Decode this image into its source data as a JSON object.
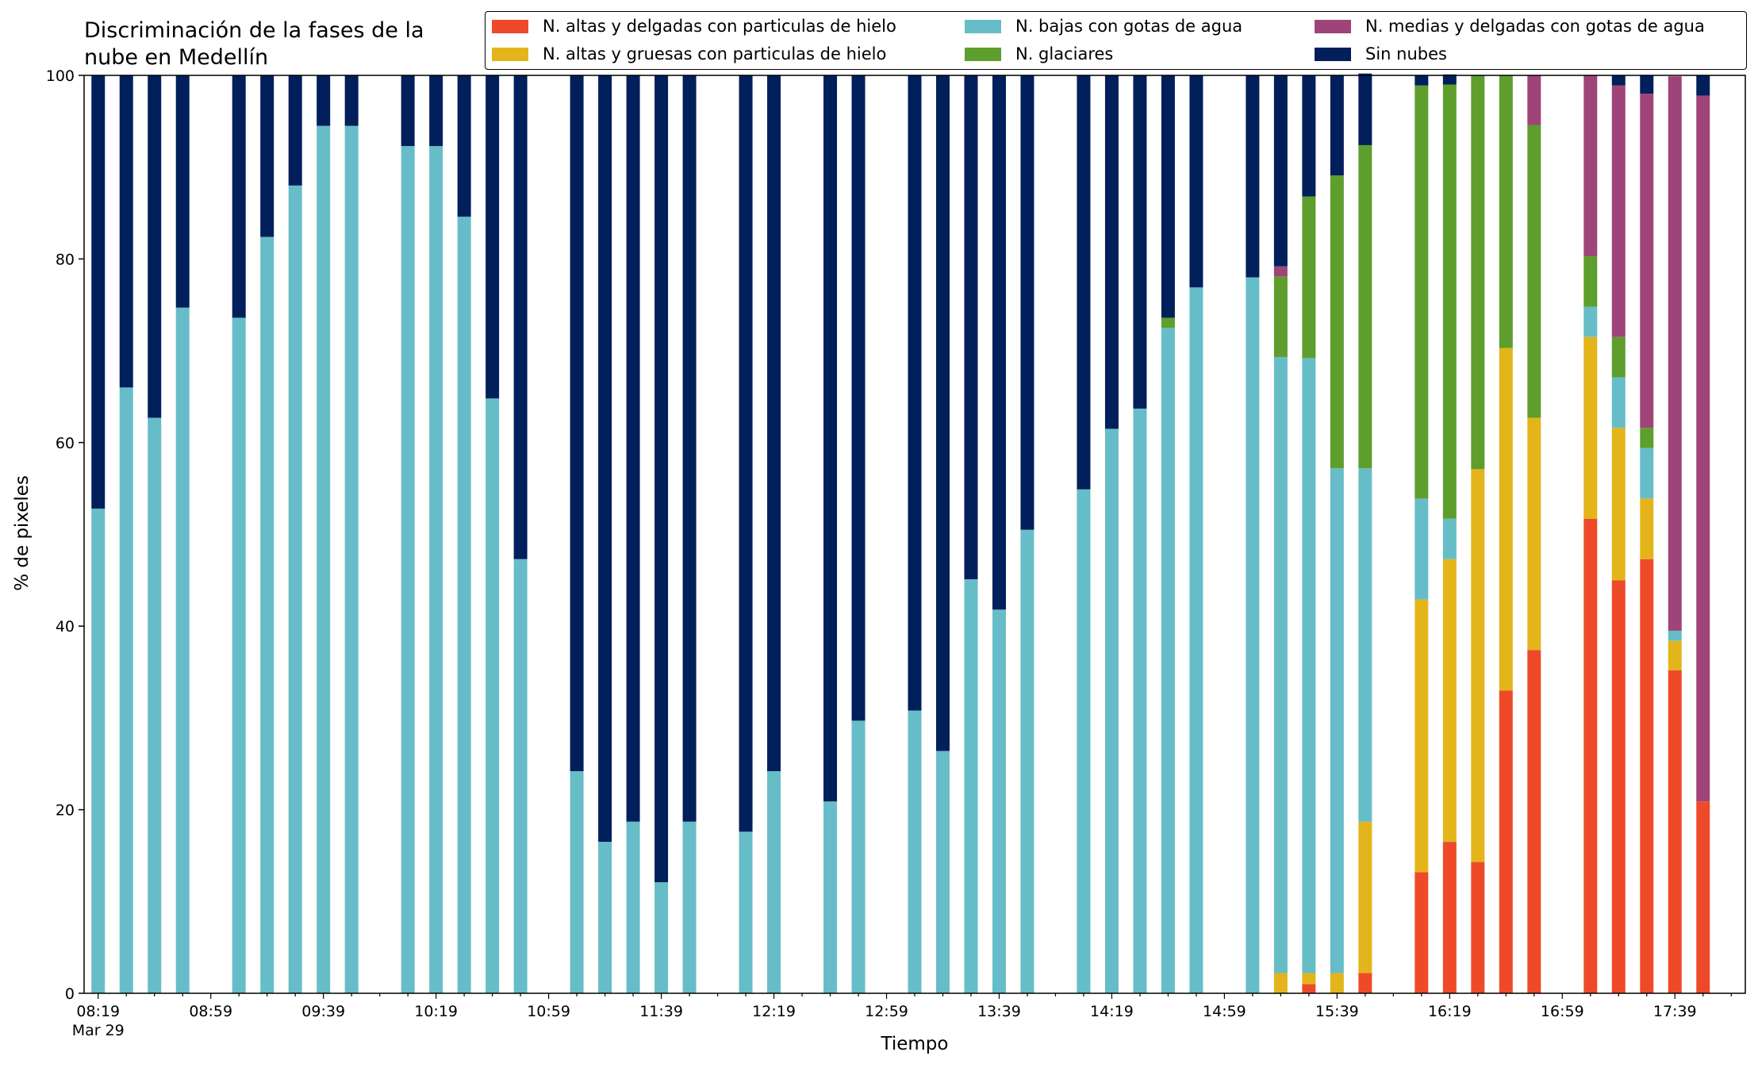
{
  "chart_data": {
    "type": "bar",
    "stacked": true,
    "title_line1": "Discriminación de la fases de la",
    "title_line2": "nube en Medellín",
    "xlabel": "Tiempo",
    "ylabel": "% de pixeles",
    "ylim": [
      0,
      100
    ],
    "yticks": [
      0,
      20,
      40,
      60,
      80,
      100
    ],
    "legend_position": "top-right",
    "xlim": [
      "08:14",
      "18:04"
    ],
    "xtick_labels": [
      {
        "time": "08:19",
        "label": "08:19",
        "sublabel": "Mar 29"
      },
      {
        "time": "08:59",
        "label": "08:59"
      },
      {
        "time": "09:39",
        "label": "09:39"
      },
      {
        "time": "10:19",
        "label": "10:19"
      },
      {
        "time": "10:59",
        "label": "10:59"
      },
      {
        "time": "11:39",
        "label": "11:39"
      },
      {
        "time": "12:19",
        "label": "12:19"
      },
      {
        "time": "12:59",
        "label": "12:59"
      },
      {
        "time": "13:39",
        "label": "13:39"
      },
      {
        "time": "14:19",
        "label": "14:19"
      },
      {
        "time": "14:59",
        "label": "14:59"
      },
      {
        "time": "15:39",
        "label": "15:39"
      },
      {
        "time": "16:19",
        "label": "16:19"
      },
      {
        "time": "16:59",
        "label": "16:59"
      },
      {
        "time": "17:39",
        "label": "17:39"
      }
    ],
    "x": [
      "08:19",
      "08:29",
      "08:39",
      "08:49",
      "09:09",
      "09:19",
      "09:29",
      "09:39",
      "09:49",
      "10:09",
      "10:19",
      "10:29",
      "10:39",
      "10:49",
      "11:09",
      "11:19",
      "11:29",
      "11:39",
      "11:49",
      "12:09",
      "12:19",
      "12:39",
      "12:49",
      "13:09",
      "13:19",
      "13:29",
      "13:39",
      "13:49",
      "14:09",
      "14:19",
      "14:29",
      "14:39",
      "14:49",
      "15:09",
      "15:19",
      "15:29",
      "15:39",
      "15:49",
      "16:09",
      "16:19",
      "16:29",
      "16:39",
      "16:49",
      "17:09",
      "17:19",
      "17:29",
      "17:39",
      "17:49"
    ],
    "series": [
      {
        "name": "N. altas y delgadas con particulas de hielo",
        "color": "#ee4a2a",
        "values": [
          0,
          0,
          0,
          0,
          0,
          0,
          0,
          0,
          0,
          0,
          0,
          0,
          0,
          0,
          0,
          0,
          0,
          0,
          0,
          0,
          0,
          0,
          0,
          0,
          0,
          0,
          0,
          0,
          0,
          0,
          0,
          0,
          0,
          0,
          0,
          1,
          0,
          2.2,
          13.2,
          16.5,
          14.3,
          33,
          37.4,
          51.7,
          45,
          47.3,
          35.2,
          20.9
        ]
      },
      {
        "name": "N. altas y gruesas con particulas de hielo",
        "color": "#e3b51a",
        "values": [
          0,
          0,
          0,
          0,
          0,
          0,
          0,
          0,
          0,
          0,
          0,
          0,
          0,
          0,
          0,
          0,
          0,
          0,
          0,
          0,
          0,
          0,
          0,
          0,
          0,
          0,
          0,
          0,
          0,
          0,
          0,
          0,
          0,
          0,
          2.2,
          1.2,
          2.2,
          16.5,
          29.7,
          30.8,
          42.8,
          37.3,
          25.3,
          19.8,
          16.6,
          6.6,
          3.2,
          0
        ]
      },
      {
        "name": "N. bajas con gotas de agua",
        "color": "#66bdc8",
        "values": [
          52.8,
          66,
          62.7,
          74.7,
          73.6,
          82.4,
          88,
          94.5,
          94.5,
          92.3,
          92.3,
          84.6,
          64.8,
          47.3,
          24.2,
          16.5,
          18.7,
          12.1,
          18.7,
          17.6,
          24.2,
          20.9,
          29.7,
          30.8,
          26.4,
          45.1,
          41.8,
          50.5,
          54.9,
          61.5,
          63.7,
          72.5,
          76.9,
          78,
          67.1,
          67,
          55,
          38.5,
          11,
          4.4,
          0,
          0,
          0,
          3.3,
          5.5,
          5.5,
          1.1,
          0
        ]
      },
      {
        "name": "N. glaciares",
        "color": "#5e9e2c",
        "values": [
          0,
          0,
          0,
          0,
          0,
          0,
          0,
          0,
          0,
          0,
          0,
          0,
          0,
          0,
          0,
          0,
          0,
          0,
          0,
          0,
          0,
          0,
          0,
          0,
          0,
          0,
          0,
          0,
          0,
          0,
          0,
          1.1,
          0,
          0,
          8.8,
          17.6,
          31.9,
          35.2,
          45,
          47.3,
          42.9,
          29.7,
          31.9,
          5.5,
          4.4,
          2.2,
          0,
          0
        ]
      },
      {
        "name": "N. medias y delgadas con gotas de agua",
        "color": "#9e4478",
        "values": [
          0,
          0,
          0,
          0,
          0,
          0,
          0,
          0,
          0,
          0,
          0,
          0,
          0,
          0,
          0,
          0,
          0,
          0,
          0,
          0,
          0,
          0,
          0,
          0,
          0,
          0,
          0,
          0,
          0,
          0,
          0,
          0,
          0,
          0,
          1.1,
          0,
          0,
          0,
          0,
          0,
          0,
          0,
          5.4,
          19.7,
          27.4,
          36.4,
          60.4,
          76.9
        ]
      },
      {
        "name": "Sin nubes",
        "color": "#001f5b",
        "values": [
          47.2,
          34,
          37.3,
          25.3,
          26.4,
          17.6,
          12,
          5.5,
          5.5,
          7.7,
          7.7,
          15.4,
          35.2,
          52.7,
          75.8,
          83.5,
          81.3,
          87.9,
          81.3,
          82.4,
          75.8,
          79.1,
          70.3,
          69.2,
          73.6,
          54.9,
          58.2,
          49.5,
          45.1,
          38.5,
          36.3,
          26.4,
          23.1,
          22,
          20.8,
          13.2,
          10.9,
          7.8,
          1.1,
          1.1,
          0,
          0,
          0,
          0,
          1.1,
          2,
          0,
          2.2
        ]
      }
    ]
  }
}
